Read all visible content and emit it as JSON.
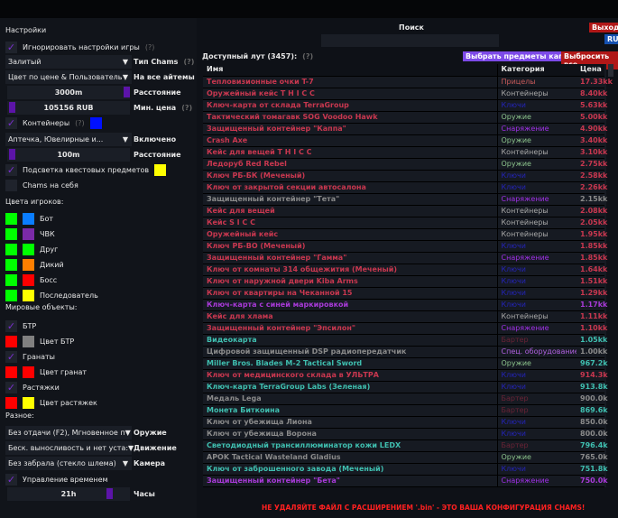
{
  "settings": {
    "title": "Настройки",
    "ignore_game": "Игнорировать настройки игры",
    "help": "(?)",
    "chams_type_value": "Залитый",
    "chams_type_label": "Тип Chams",
    "items_mode_value": "Цвет по цене & Пользователь",
    "items_mode_label": "На все айтемы",
    "distance_value": "3000m",
    "distance_label": "Расстояние",
    "min_price_value": "105156 RUB",
    "min_price_label": "Мин. цена",
    "containers": "Контейнеры",
    "containers_list_value": "Аптечка, Ювелирные и...",
    "containers_list_label": "Включено",
    "container_distance_value": "100m",
    "container_distance_label": "Расстояние",
    "quest_highlight": "Подсветка квестовых предметов",
    "chams_self": "Chams на себя"
  },
  "player_colors": {
    "title": "Цвета игроков:",
    "items": [
      {
        "label": "Бот",
        "c1": "#00ff00",
        "c2": "#0a7dff"
      },
      {
        "label": "ЧВК",
        "c1": "#00ff00",
        "c2": "#7a2aa8"
      },
      {
        "label": "Друг",
        "c1": "#00ff00",
        "c2": "#00ff00"
      },
      {
        "label": "Дикий",
        "c1": "#00ff00",
        "c2": "#ff7f00"
      },
      {
        "label": "Босс",
        "c1": "#00ff00",
        "c2": "#ff0000"
      },
      {
        "label": "Последователь",
        "c1": "#00ff00",
        "c2": "#ffff00"
      }
    ]
  },
  "world": {
    "title": "Мировые объекты:",
    "btr": "БТР",
    "btr_color": "Цвет БТР",
    "grenades": "Гранаты",
    "grenades_color": "Цвет гранат",
    "tripwires": "Растяжки",
    "tripwires_color": "Цвет растяжек"
  },
  "misc": {
    "title": "Разное:",
    "weapon_value": "Без отдачи (F2), Мгновенное п",
    "weapon_label": "Оружие",
    "movement_value": "Беск. выносливость и нет уста:",
    "movement_label": "Движение",
    "camera_value": "Без забрала (стекло шлема)",
    "camera_label": "Камера",
    "time_control": "Управление временем",
    "hours_value": "21h",
    "hours_label": "Часы"
  },
  "search": {
    "label": "Поиск",
    "value": ""
  },
  "buttons": {
    "exit": "Выход",
    "lang": "RU",
    "select_kappa": "Выбрать предметы каппа",
    "drop_all": "Выбросить все"
  },
  "loot": {
    "title": "Доступный лут (3457):",
    "help": "(?)",
    "columns": [
      "Имя",
      "Категория",
      "Цена"
    ],
    "colors": {
      "red": "#c8374f",
      "grey": "#8a8a8a",
      "teal": "#3fbfb0",
      "purple": "#a83ad8"
    },
    "cat_colors": {
      "Прицелы": "#c85a5a",
      "Контейнеры": "#a8a8a8",
      "Ключи": "#2424b8",
      "Оружие": "#8cc48c",
      "Снаряжение": "#a030e8",
      "Бартер": "#6a2336",
      "Спец. оборудование": "#b060e0"
    },
    "rows": [
      [
        "Тепловизионные очки T-7",
        "red",
        "Прицелы",
        "17.33kk"
      ],
      [
        "Оружейный кейс T H I C C",
        "red",
        "Контейнеры",
        "8.40kk"
      ],
      [
        "Ключ-карта от склада TerraGroup",
        "red",
        "Ключи",
        "5.63kk"
      ],
      [
        "Тактический томагавк SOG Voodoo Hawk",
        "red",
        "Оружие",
        "5.00kk"
      ],
      [
        "Защищенный контейнер \"Каппа\"",
        "red",
        "Снаряжение",
        "4.90kk"
      ],
      [
        "Crash Axe",
        "red",
        "Оружие",
        "3.40kk"
      ],
      [
        "Кейс для вещей T H I C C",
        "red",
        "Контейнеры",
        "3.10kk"
      ],
      [
        "Ледоруб Red Rebel",
        "red",
        "Оружие",
        "2.75kk"
      ],
      [
        "Ключ РБ-БК (Меченый)",
        "red",
        "Ключи",
        "2.58kk"
      ],
      [
        "Ключ от закрытой секции автосалона",
        "red",
        "Ключи",
        "2.26kk"
      ],
      [
        "Защищенный контейнер \"Тета\"",
        "grey",
        "Снаряжение",
        "2.15kk"
      ],
      [
        "Кейс для вещей",
        "red",
        "Контейнеры",
        "2.08kk"
      ],
      [
        "Кейс S I C C",
        "red",
        "Контейнеры",
        "2.05kk"
      ],
      [
        "Оружейный кейс",
        "red",
        "Контейнеры",
        "1.95kk"
      ],
      [
        "Ключ РБ-ВО (Меченый)",
        "red",
        "Ключи",
        "1.85kk"
      ],
      [
        "Защищенный контейнер \"Гамма\"",
        "red",
        "Снаряжение",
        "1.85kk"
      ],
      [
        "Ключ от комнаты 314 общежития (Меченый)",
        "red",
        "Ключи",
        "1.64kk"
      ],
      [
        "Ключ от наружной двери Kiba Arms",
        "red",
        "Ключи",
        "1.51kk"
      ],
      [
        "Ключ от квартиры на Чеканной 15",
        "red",
        "Ключи",
        "1.29kk"
      ],
      [
        "Ключ-карта с синей маркировкой",
        "purple",
        "Ключи",
        "1.17kk"
      ],
      [
        "Кейс для хлама",
        "red",
        "Контейнеры",
        "1.11kk"
      ],
      [
        "Защищенный контейнер \"Эпсилон\"",
        "red",
        "Снаряжение",
        "1.10kk"
      ],
      [
        "Видеокарта",
        "teal",
        "Бартер",
        "1.05kk"
      ],
      [
        "Цифровой защищенный DSP радиопередатчик",
        "grey",
        "Спец. оборудование",
        "1.00kk"
      ],
      [
        "Miller Bros. Blades M-2 Tactical Sword",
        "teal",
        "Оружие",
        "967.2k"
      ],
      [
        "Ключ от медицинского склада в УЛЬТРА",
        "red",
        "Ключи",
        "914.3k"
      ],
      [
        "Ключ-карта TerraGroup Labs (Зеленая)",
        "teal",
        "Ключи",
        "913.8k"
      ],
      [
        "Медаль Lega",
        "grey",
        "Бартер",
        "900.0k"
      ],
      [
        "Монета Биткоина",
        "teal",
        "Бартер",
        "869.6k"
      ],
      [
        "Ключ от убежища Лиона",
        "grey",
        "Ключи",
        "850.0k"
      ],
      [
        "Ключ от убежища Ворона",
        "grey",
        "Ключи",
        "800.0k"
      ],
      [
        "Светодиодный трансиллюминатор кожи LEDX",
        "teal",
        "Бартер",
        "796.4k"
      ],
      [
        "APOK Tactical Wasteland Gladius",
        "grey",
        "Оружие",
        "765.0k"
      ],
      [
        "Ключ от заброшенного завода (Меченый)",
        "teal",
        "Ключи",
        "751.8k"
      ],
      [
        "Защищенный контейнер \"Бета\"",
        "purple",
        "Снаряжение",
        "750.0k"
      ]
    ]
  },
  "warning": "НЕ УДАЛЯЙТЕ ФАЙЛ С РАСШИРЕНИЕМ '.bin' - ЭТО ВАША КОНФИГУРАЦИЯ CHAMS!"
}
